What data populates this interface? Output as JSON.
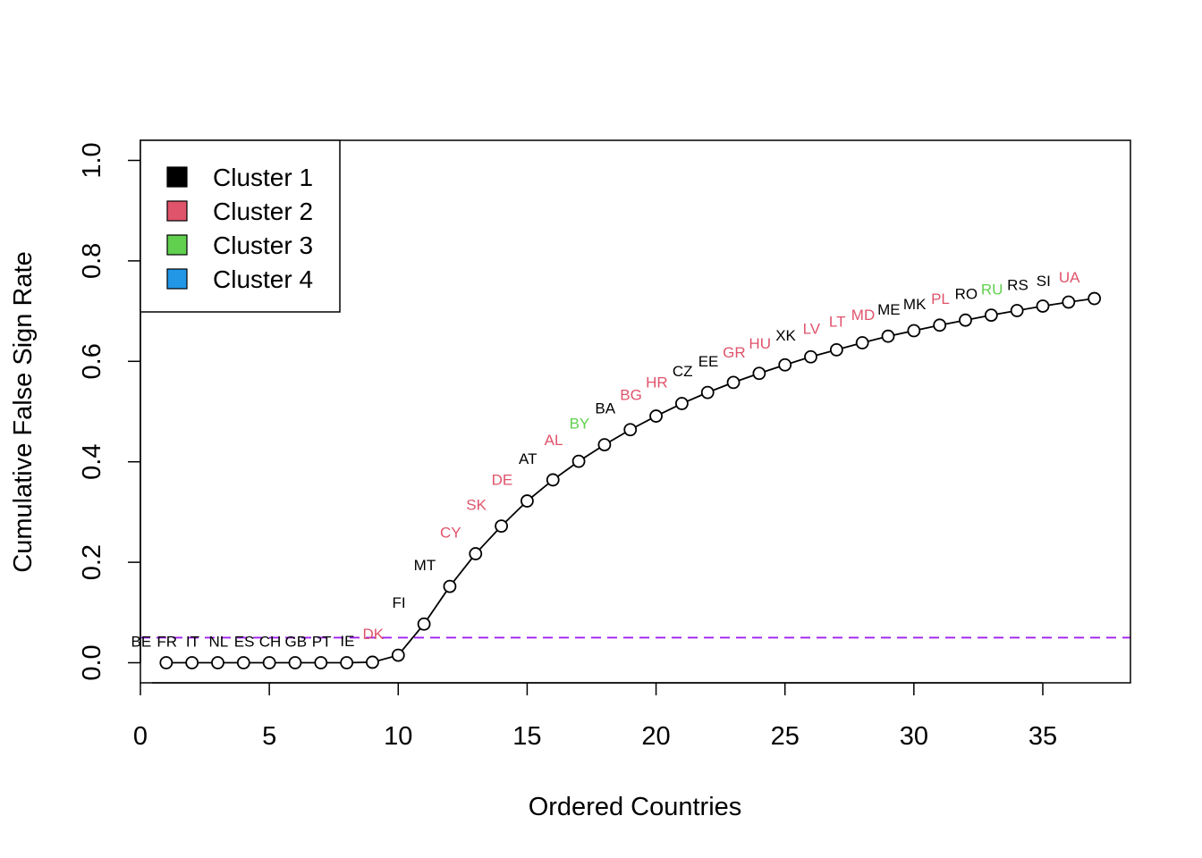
{
  "chart_data": {
    "type": "line",
    "title": "",
    "xlabel": "Ordered Countries",
    "ylabel": "Cumulative False Sign Rate",
    "xlim": [
      0,
      38.4
    ],
    "ylim": [
      -0.04,
      1.04
    ],
    "xticks": [
      0,
      5,
      10,
      15,
      20,
      25,
      30,
      35
    ],
    "yticks": [
      0.0,
      0.2,
      0.4,
      0.6,
      0.8,
      1.0
    ],
    "xtick_labels": [
      "0",
      "5",
      "10",
      "15",
      "20",
      "25",
      "30",
      "35"
    ],
    "ytick_labels": [
      "0.0",
      "0.2",
      "0.4",
      "0.6",
      "0.8",
      "1.0"
    ],
    "grid": false,
    "threshold": {
      "y": 0.05,
      "color": "#A020F0",
      "style": "dashed"
    },
    "legend": {
      "position": "top-left",
      "entries": [
        {
          "label": "Cluster 1",
          "color": "#000000"
        },
        {
          "label": "Cluster 2",
          "color": "#DF536B"
        },
        {
          "label": "Cluster 3",
          "color": "#61D04F"
        },
        {
          "label": "Cluster 4",
          "color": "#2297E6"
        }
      ]
    },
    "points": [
      {
        "x": 1,
        "y": 0.0,
        "label": "BE",
        "cluster": 1
      },
      {
        "x": 2,
        "y": 0.0,
        "label": "FR",
        "cluster": 1
      },
      {
        "x": 3,
        "y": 0.0,
        "label": "IT",
        "cluster": 1
      },
      {
        "x": 4,
        "y": 0.0,
        "label": "NL",
        "cluster": 1
      },
      {
        "x": 5,
        "y": 0.0,
        "label": "ES",
        "cluster": 1
      },
      {
        "x": 6,
        "y": 0.0,
        "label": "CH",
        "cluster": 1
      },
      {
        "x": 7,
        "y": 0.0,
        "label": "GB",
        "cluster": 1
      },
      {
        "x": 8,
        "y": 0.0,
        "label": "PT",
        "cluster": 1
      },
      {
        "x": 9,
        "y": 0.001,
        "label": "IE",
        "cluster": 1
      },
      {
        "x": 10,
        "y": 0.015,
        "label": "DK",
        "cluster": 2
      },
      {
        "x": 11,
        "y": 0.077,
        "label": "FI",
        "cluster": 1
      },
      {
        "x": 12,
        "y": 0.152,
        "label": "MT",
        "cluster": 1
      },
      {
        "x": 13,
        "y": 0.217,
        "label": "CY",
        "cluster": 2
      },
      {
        "x": 14,
        "y": 0.272,
        "label": "SK",
        "cluster": 2
      },
      {
        "x": 15,
        "y": 0.322,
        "label": "DE",
        "cluster": 2
      },
      {
        "x": 16,
        "y": 0.364,
        "label": "AT",
        "cluster": 1
      },
      {
        "x": 17,
        "y": 0.401,
        "label": "AL",
        "cluster": 2
      },
      {
        "x": 18,
        "y": 0.434,
        "label": "BY",
        "cluster": 3
      },
      {
        "x": 19,
        "y": 0.464,
        "label": "BA",
        "cluster": 1
      },
      {
        "x": 20,
        "y": 0.491,
        "label": "BG",
        "cluster": 2
      },
      {
        "x": 21,
        "y": 0.516,
        "label": "HR",
        "cluster": 2
      },
      {
        "x": 22,
        "y": 0.538,
        "label": "CZ",
        "cluster": 1
      },
      {
        "x": 23,
        "y": 0.558,
        "label": "EE",
        "cluster": 1
      },
      {
        "x": 24,
        "y": 0.576,
        "label": "GR",
        "cluster": 2
      },
      {
        "x": 25,
        "y": 0.593,
        "label": "HU",
        "cluster": 2
      },
      {
        "x": 26,
        "y": 0.609,
        "label": "XK",
        "cluster": 1
      },
      {
        "x": 27,
        "y": 0.623,
        "label": "LV",
        "cluster": 2
      },
      {
        "x": 28,
        "y": 0.637,
        "label": "LT",
        "cluster": 2
      },
      {
        "x": 29,
        "y": 0.65,
        "label": "MD",
        "cluster": 2
      },
      {
        "x": 30,
        "y": 0.661,
        "label": "ME",
        "cluster": 1
      },
      {
        "x": 31,
        "y": 0.672,
        "label": "MK",
        "cluster": 1
      },
      {
        "x": 32,
        "y": 0.682,
        "label": "PL",
        "cluster": 2
      },
      {
        "x": 33,
        "y": 0.692,
        "label": "RO",
        "cluster": 1
      },
      {
        "x": 34,
        "y": 0.701,
        "label": "RU",
        "cluster": 3
      },
      {
        "x": 35,
        "y": 0.71,
        "label": "RS",
        "cluster": 1
      },
      {
        "x": 36,
        "y": 0.718,
        "label": "SI",
        "cluster": 1
      },
      {
        "x": 37,
        "y": 0.725,
        "label": "UA",
        "cluster": 2
      }
    ]
  }
}
